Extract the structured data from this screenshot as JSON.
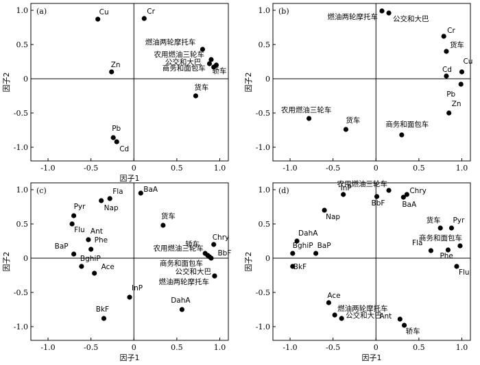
{
  "chart_data": [
    {
      "type": "scatter",
      "panel_label": "(a)",
      "xlabel": "因子1",
      "ylabel": "因子2",
      "xlim": [
        -1.2,
        1.1
      ],
      "ylim": [
        -1.2,
        1.1
      ],
      "xticks": [
        "-1.0",
        "-0.5",
        "0",
        "0.5",
        "1.0"
      ],
      "yticks": [
        "-1.0",
        "-0.5",
        "0",
        "0.5",
        "1.0"
      ],
      "grid": false,
      "points": [
        {
          "label": "Cu",
          "x": -0.42,
          "y": 0.87
        },
        {
          "label": "Cr",
          "x": 0.12,
          "y": 0.88
        },
        {
          "label": "燃油两轮摩托车",
          "x": 0.8,
          "y": 0.43
        },
        {
          "label": "农用燃油三轮车",
          "x": 0.9,
          "y": 0.28
        },
        {
          "label": "公交和大巴",
          "x": 0.88,
          "y": 0.22
        },
        {
          "label": "商务和面包车",
          "x": 0.93,
          "y": 0.17
        },
        {
          "label": "轿车",
          "x": 0.96,
          "y": 0.2
        },
        {
          "label": "Zn",
          "x": -0.26,
          "y": 0.1
        },
        {
          "label": "货车",
          "x": 0.72,
          "y": -0.25
        },
        {
          "label": "Pb",
          "x": -0.24,
          "y": -0.86
        },
        {
          "label": "Cd",
          "x": -0.2,
          "y": -0.92
        }
      ]
    },
    {
      "type": "scatter",
      "panel_label": "(b)",
      "xlabel": "",
      "ylabel": "因子2",
      "xlim": [
        -1.2,
        1.1
      ],
      "ylim": [
        -1.2,
        1.1
      ],
      "xticks": [
        "-1.0",
        "-0.5",
        "0",
        "0.5",
        "1.0"
      ],
      "yticks": [
        "-1.0",
        "-0.5",
        "0",
        "0.5",
        "1.0"
      ],
      "grid": false,
      "points": [
        {
          "label": "燃油两轮摩托车",
          "x": 0.07,
          "y": 0.99
        },
        {
          "label": "公交和大巴",
          "x": 0.15,
          "y": 0.96
        },
        {
          "label": "Cr",
          "x": 0.79,
          "y": 0.62
        },
        {
          "label": "货车",
          "x": 0.82,
          "y": 0.4
        },
        {
          "label": "Cu",
          "x": 1.0,
          "y": 0.1
        },
        {
          "label": "Cd",
          "x": 0.82,
          "y": 0.04
        },
        {
          "label": "Pb",
          "x": 0.99,
          "y": -0.08
        },
        {
          "label": "Zn",
          "x": 0.85,
          "y": -0.5
        },
        {
          "label": "农用燃油三轮车",
          "x": -0.78,
          "y": -0.58
        },
        {
          "label": "货车",
          "x": -0.35,
          "y": -0.74
        },
        {
          "label": "商务和面包车",
          "x": 0.3,
          "y": -0.82
        }
      ]
    },
    {
      "type": "scatter",
      "panel_label": "(c)",
      "xlabel": "因子1",
      "ylabel": "因子2",
      "xlim": [
        -1.2,
        1.1
      ],
      "ylim": [
        -1.2,
        1.1
      ],
      "xticks": [
        "-1.0",
        "-0.5",
        "0",
        "0.5",
        "1.0"
      ],
      "yticks": [
        "-1.0",
        "-0.5",
        "0",
        "0.5",
        "1.0"
      ],
      "grid": false,
      "points": [
        {
          "label": "BaA",
          "x": 0.08,
          "y": 0.95
        },
        {
          "label": "Fla",
          "x": -0.28,
          "y": 0.87
        },
        {
          "label": "Nap",
          "x": -0.38,
          "y": 0.84
        },
        {
          "label": "Pyr",
          "x": -0.7,
          "y": 0.62
        },
        {
          "label": "货车",
          "x": 0.34,
          "y": 0.48
        },
        {
          "label": "Flu",
          "x": -0.72,
          "y": 0.5
        },
        {
          "label": "Ant",
          "x": -0.53,
          "y": 0.27
        },
        {
          "label": "Phe",
          "x": -0.5,
          "y": 0.13
        },
        {
          "label": "BaP",
          "x": -0.7,
          "y": 0.06
        },
        {
          "label": "轿车",
          "x": 0.83,
          "y": 0.07
        },
        {
          "label": "Chry",
          "x": 0.93,
          "y": 0.2
        },
        {
          "label": "农用燃油三轮车",
          "x": 0.86,
          "y": 0.04
        },
        {
          "label": "BbF",
          "x": 0.88,
          "y": 0.02
        },
        {
          "label": "BghiP",
          "x": -0.61,
          "y": -0.12
        },
        {
          "label": "Ace",
          "x": -0.46,
          "y": -0.22
        },
        {
          "label": "商务和面包车",
          "x": 0.9,
          "y": 0.0
        },
        {
          "label": "公交和大巴",
          "x": 0.94,
          "y": -0.26
        },
        {
          "label": "燃油两轮摩托车",
          "x": 0.94,
          "y": -0.26
        },
        {
          "label": "InP",
          "x": -0.05,
          "y": -0.57
        },
        {
          "label": "DahA",
          "x": 0.56,
          "y": -0.75
        },
        {
          "label": "BkF",
          "x": -0.35,
          "y": -0.88
        }
      ]
    },
    {
      "type": "scatter",
      "panel_label": "(d)",
      "xlabel": "因子1",
      "ylabel": "因子2",
      "xlim": [
        -1.2,
        1.1
      ],
      "ylim": [
        -1.2,
        1.1
      ],
      "xticks": [
        "-1.0",
        "-0.5",
        "0",
        "0.5",
        "1.0"
      ],
      "yticks": [
        "-1.0",
        "-0.5",
        "0",
        "0.5",
        "1.0"
      ],
      "grid": false,
      "points": [
        {
          "label": "InP",
          "x": -0.38,
          "y": 0.93
        },
        {
          "label": "BbF",
          "x": 0.01,
          "y": 0.9
        },
        {
          "label": "Chry",
          "x": 0.36,
          "y": 0.93
        },
        {
          "label": "BaA",
          "x": 0.32,
          "y": 0.89
        },
        {
          "label": "农用燃油三轮车",
          "x": 0.15,
          "y": 0.99
        },
        {
          "label": "Nap",
          "x": -0.6,
          "y": 0.7
        },
        {
          "label": "货车",
          "x": 0.75,
          "y": 0.44
        },
        {
          "label": "Pyr",
          "x": 0.88,
          "y": 0.44
        },
        {
          "label": "商务和面包车",
          "x": 0.98,
          "y": 0.18
        },
        {
          "label": "DahA",
          "x": -0.92,
          "y": 0.25
        },
        {
          "label": "BaP",
          "x": -0.7,
          "y": 0.07
        },
        {
          "label": "BghiP",
          "x": -0.97,
          "y": 0.07
        },
        {
          "label": "Fla",
          "x": 0.64,
          "y": 0.11
        },
        {
          "label": "Phe",
          "x": 0.84,
          "y": 0.12
        },
        {
          "label": "BkF",
          "x": -0.97,
          "y": -0.12
        },
        {
          "label": "Flu",
          "x": 0.94,
          "y": -0.12
        },
        {
          "label": "Ace",
          "x": -0.55,
          "y": -0.65
        },
        {
          "label": "燃油两轮摩托车",
          "x": -0.48,
          "y": -0.83
        },
        {
          "label": "公交和大巴",
          "x": -0.4,
          "y": -0.88
        },
        {
          "label": "Ant",
          "x": 0.28,
          "y": -0.89
        },
        {
          "label": "轿车",
          "x": 0.33,
          "y": -0.98
        }
      ]
    }
  ]
}
